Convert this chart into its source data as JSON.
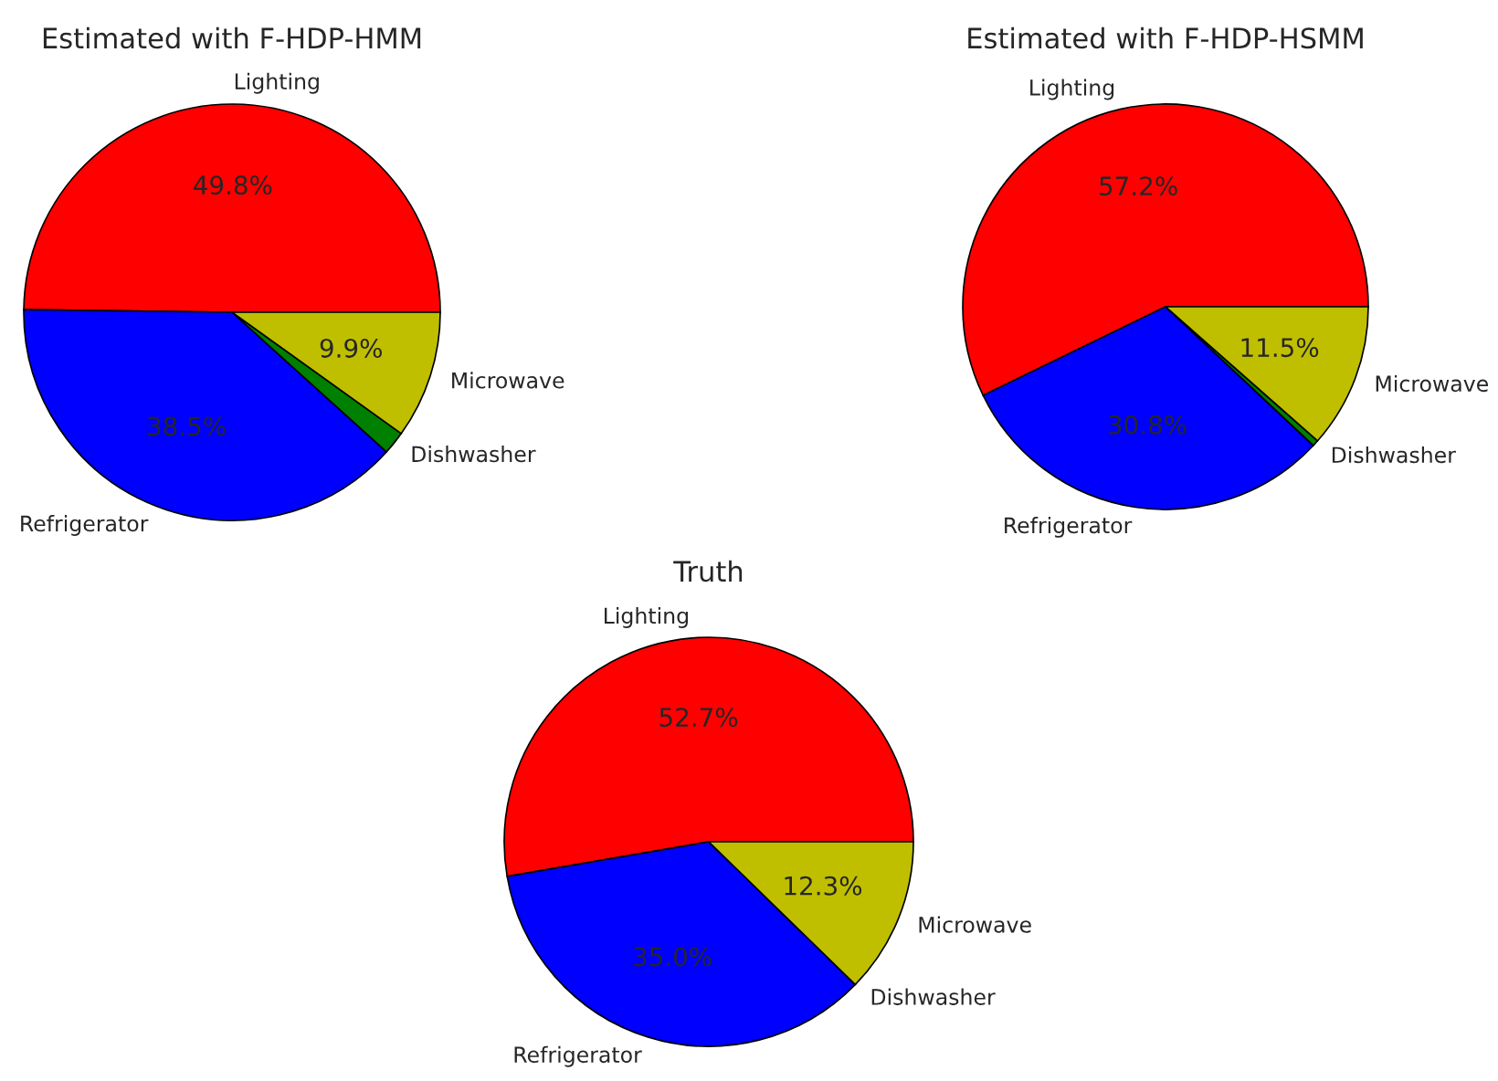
{
  "chart_data": [
    {
      "type": "pie",
      "title": "Estimated with F-HDP-HMM",
      "categories": [
        "Lighting",
        "Refrigerator",
        "Dishwasher",
        "Microwave"
      ],
      "values": [
        49.8,
        38.5,
        1.8,
        9.9
      ],
      "colors": [
        "#ff0000",
        "#0000ff",
        "#008000",
        "#bfbf00"
      ],
      "value_labels": [
        "49.8%",
        "38.5%",
        null,
        "9.9%"
      ]
    },
    {
      "type": "pie",
      "title": "Estimated with F-HDP-HSMM",
      "categories": [
        "Lighting",
        "Refrigerator",
        "Dishwasher",
        "Microwave"
      ],
      "values": [
        57.2,
        30.8,
        0.5,
        11.5
      ],
      "colors": [
        "#ff0000",
        "#0000ff",
        "#008000",
        "#bfbf00"
      ],
      "value_labels": [
        "57.2%",
        "30.8%",
        null,
        "11.5%"
      ]
    },
    {
      "type": "pie",
      "title": "Truth",
      "categories": [
        "Lighting",
        "Refrigerator",
        "Dishwasher",
        "Microwave"
      ],
      "values": [
        52.7,
        35.0,
        0.0,
        12.3
      ],
      "colors": [
        "#ff0000",
        "#0000ff",
        "#008000",
        "#bfbf00"
      ],
      "value_labels": [
        "52.7%",
        "35.0%",
        null,
        "12.3%"
      ]
    }
  ]
}
